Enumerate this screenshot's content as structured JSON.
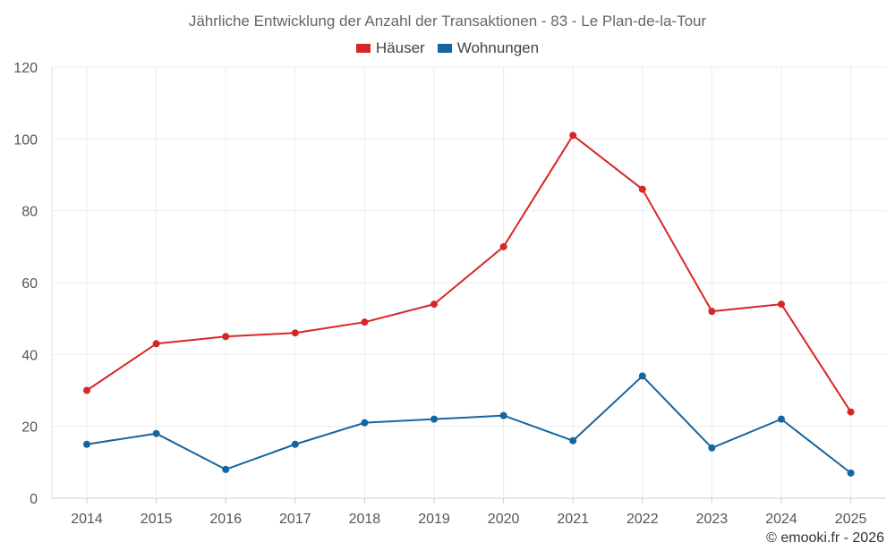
{
  "chart_data": {
    "type": "line",
    "title": "Jährliche Entwicklung der Anzahl der Transaktionen - 83 - Le Plan-de-la-Tour",
    "categories": [
      "2014",
      "2015",
      "2016",
      "2017",
      "2018",
      "2019",
      "2020",
      "2021",
      "2022",
      "2023",
      "2024",
      "2025"
    ],
    "series": [
      {
        "name": "Häuser",
        "color": "#d62728",
        "values": [
          30,
          43,
          45,
          46,
          49,
          54,
          70,
          101,
          86,
          52,
          54,
          24
        ]
      },
      {
        "name": "Wohnungen",
        "color": "#1565a0",
        "values": [
          15,
          18,
          8,
          15,
          21,
          22,
          23,
          16,
          34,
          14,
          22,
          7
        ]
      }
    ],
    "ylim": [
      0,
      120
    ],
    "yticks": [
      0,
      20,
      40,
      60,
      80,
      100,
      120
    ],
    "xlabel": "",
    "ylabel": "",
    "grid": true,
    "legend_position": "top-center"
  },
  "credit": "© emooki.fr - 2026"
}
